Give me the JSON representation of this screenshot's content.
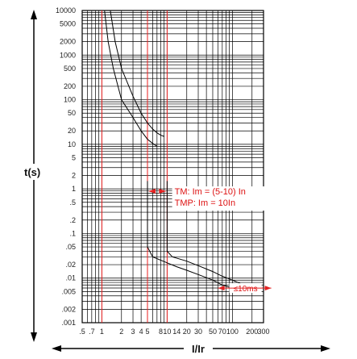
{
  "chart_data": {
    "type": "line",
    "title": "",
    "xlabel": "I/Ir",
    "ylabel": "t(s)",
    "x_scale": "log",
    "y_scale": "log",
    "xlim": [
      0.5,
      300
    ],
    "ylim": [
      0.001,
      10000
    ],
    "y_ticks": [
      {
        "value": 10000,
        "label": "10000"
      },
      {
        "value": 5000,
        "label": "5000"
      },
      {
        "value": 2000,
        "label": "2000"
      },
      {
        "value": 1000,
        "label": "1000"
      },
      {
        "value": 500,
        "label": "500"
      },
      {
        "value": 200,
        "label": "200"
      },
      {
        "value": 100,
        "label": "100"
      },
      {
        "value": 50,
        "label": "50"
      },
      {
        "value": 20,
        "label": "20"
      },
      {
        "value": 10,
        "label": "10"
      },
      {
        "value": 5,
        "label": "5"
      },
      {
        "value": 2,
        "label": "2"
      },
      {
        "value": 1,
        "label": "1"
      },
      {
        "value": 0.5,
        "label": ".5"
      },
      {
        "value": 0.2,
        "label": ".2"
      },
      {
        "value": 0.1,
        "label": ".1"
      },
      {
        "value": 0.05,
        "label": ".05"
      },
      {
        "value": 0.02,
        "label": ".02"
      },
      {
        "value": 0.01,
        "label": ".01"
      },
      {
        "value": 0.005,
        "label": ".005"
      },
      {
        "value": 0.002,
        "label": ".002"
      },
      {
        "value": 0.001,
        "label": ".001"
      }
    ],
    "x_ticks": [
      {
        "value": 0.5,
        "label": ".5"
      },
      {
        "value": 0.7,
        "label": ".7"
      },
      {
        "value": 1,
        "label": "1"
      },
      {
        "value": 2,
        "label": "2"
      },
      {
        "value": 3,
        "label": "3"
      },
      {
        "value": 4,
        "label": "4"
      },
      {
        "value": 5,
        "label": "5"
      },
      {
        "value": 8,
        "label": "8"
      },
      {
        "value": 10,
        "label": "10"
      },
      {
        "value": 14,
        "label": "14"
      },
      {
        "value": 20,
        "label": "20"
      },
      {
        "value": 30,
        "label": "30"
      },
      {
        "value": 50,
        "label": "50"
      },
      {
        "value": 70,
        "label": "70"
      },
      {
        "value": 100,
        "label": "100"
      },
      {
        "value": 200,
        "label": "200"
      },
      {
        "value": 300,
        "label": "300"
      }
    ],
    "grid": true,
    "highlight_x": [
      1,
      5,
      10
    ],
    "series": [
      {
        "points": [
          [
            1.1,
            10000
          ],
          [
            1.25,
            2000
          ],
          [
            1.5,
            500
          ],
          [
            2,
            100
          ],
          [
            3,
            40
          ],
          [
            4,
            20
          ],
          [
            5,
            13
          ],
          [
            6,
            10.5
          ],
          [
            7,
            9
          ]
        ]
      },
      {
        "points": [
          [
            1.35,
            10000
          ],
          [
            1.6,
            2000
          ],
          [
            2,
            500
          ],
          [
            3,
            120
          ],
          [
            4,
            50
          ],
          [
            5,
            30
          ],
          [
            6,
            22
          ],
          [
            7,
            18
          ],
          [
            8,
            16
          ],
          [
            9,
            15
          ]
        ]
      },
      {
        "points": [
          [
            5,
            1.5
          ],
          [
            5,
            0.05
          ],
          [
            6,
            0.03
          ],
          [
            10,
            0.022
          ],
          [
            14,
            0.018
          ],
          [
            20,
            0.015
          ],
          [
            30,
            0.012
          ],
          [
            50,
            0.009
          ],
          [
            70,
            0.007
          ],
          [
            100,
            0.006
          ],
          [
            130,
            0.005
          ]
        ]
      },
      {
        "points": [
          [
            10,
            1.5
          ],
          [
            10,
            0.04
          ],
          [
            12,
            0.03
          ],
          [
            20,
            0.024
          ],
          [
            30,
            0.019
          ],
          [
            50,
            0.014
          ],
          [
            70,
            0.011
          ],
          [
            100,
            0.009
          ],
          [
            150,
            0.007
          ],
          [
            200,
            0.006
          ]
        ]
      }
    ],
    "annotations": [
      {
        "text": "TM: Im = (5-10) In",
        "x": 13,
        "y": 0.75
      },
      {
        "text": "TMP: Im = 10In",
        "x": 13,
        "y": 0.3
      },
      {
        "text": "≤10ms",
        "x": 150,
        "y": 0.0055
      }
    ],
    "colors": {
      "grid": "#000000",
      "highlight": "#e22222",
      "annotation": "#d11111",
      "curve": "#000000"
    }
  }
}
